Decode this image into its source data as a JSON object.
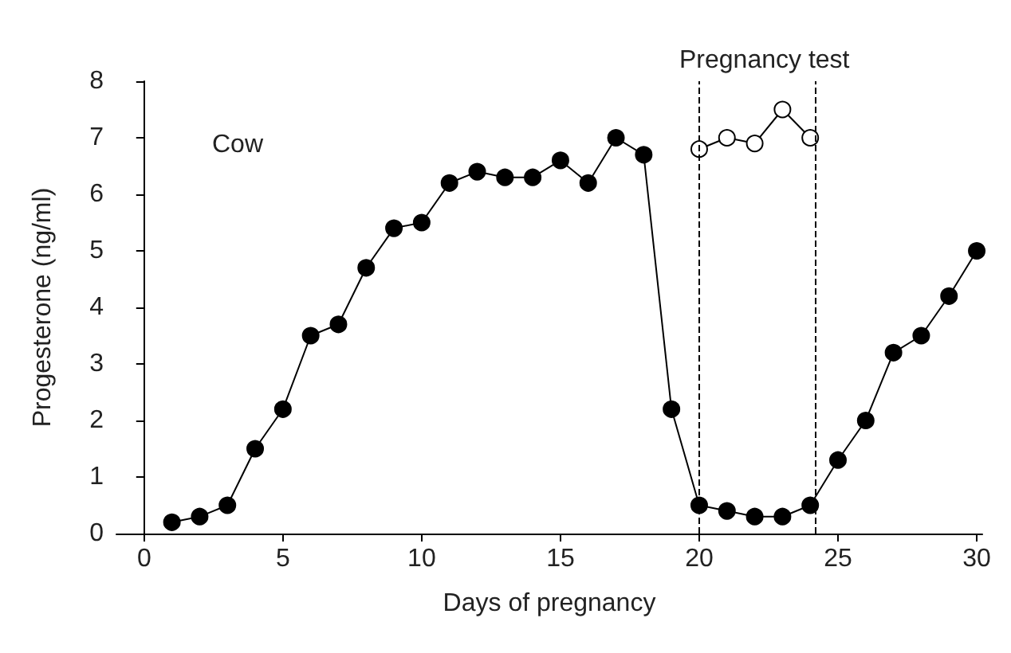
{
  "chart_data": {
    "type": "line",
    "xlabel": "Days of pregnancy",
    "ylabel": "Progesterone (ng/ml)",
    "annotations": [
      "Cow",
      "Pregnancy test"
    ],
    "xlim": [
      -1,
      30.2
    ],
    "xticks": [
      0,
      5,
      10,
      15,
      20,
      25,
      30
    ],
    "ylim": [
      0,
      8
    ],
    "yticks": [
      0,
      1,
      2,
      3,
      4,
      5,
      6,
      7,
      8
    ],
    "grid": false,
    "marker": "circle",
    "line_style": "solid",
    "series": [
      {
        "color": "#000000",
        "x": [
          1,
          2,
          3,
          4,
          5,
          6,
          7,
          8,
          9,
          10,
          11,
          12,
          13,
          14,
          15,
          16,
          17,
          18,
          19,
          20,
          21,
          22,
          23,
          24,
          25,
          26,
          27,
          28,
          29,
          30
        ],
        "values": [
          0.2,
          0.3,
          0.5,
          1.5,
          2.2,
          3.5,
          3.7,
          4.7,
          5.4,
          5.5,
          6.2,
          6.4,
          6.3,
          6.3,
          6.6,
          6.2,
          7.0,
          6.7,
          2.2,
          0.5,
          0.4,
          0.3,
          0.3,
          0.5,
          1.3,
          2.0,
          3.2,
          3.5,
          4.2,
          5.0
        ]
      },
      {
        "color": "#ffffff",
        "x": [
          20,
          21,
          22,
          23,
          24
        ],
        "values": [
          6.8,
          7.0,
          6.9,
          7.5,
          7.0
        ]
      }
    ],
    "ref_lines": [
      {
        "axis": "x",
        "value": 20,
        "line_style": "dashed"
      },
      {
        "axis": "x",
        "value": 24.2,
        "line_style": "dashed"
      }
    ]
  }
}
